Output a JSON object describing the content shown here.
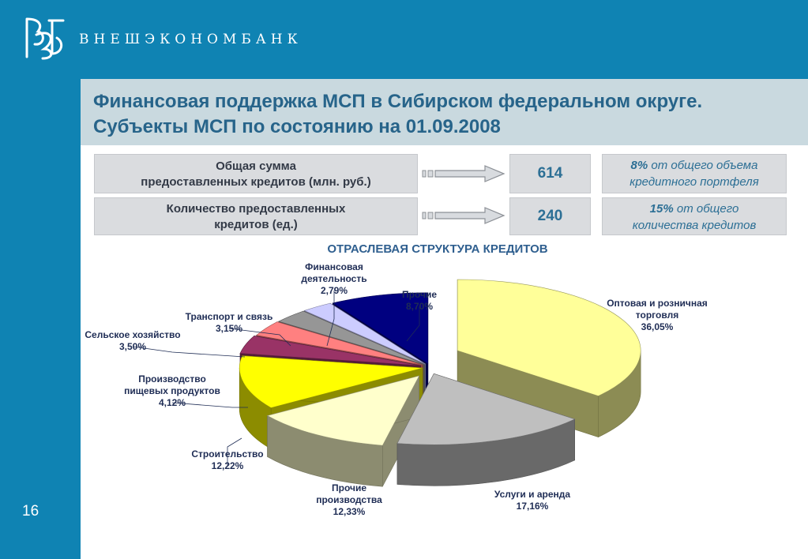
{
  "header": {
    "brand": "ВНЕШЭКОНОМБАНК",
    "logo_icon": "veb-monogram-logo",
    "colors": {
      "bar": "#0f83b3",
      "title_band": "#c9d9df",
      "title_text": "#27648a"
    }
  },
  "title": {
    "line1": "Финансовая поддержка МСП в Сибирском федеральном округе.",
    "line2": "Субъекты МСП по состоянию на 01.09.2008"
  },
  "stats": [
    {
      "label": [
        "Общая сумма",
        "предоставленных кредитов (млн. руб.)"
      ],
      "value": "614",
      "pct_bold": "8%",
      "pct_rest": " от общего объема",
      "pct_line2": "кредитного портфеля"
    },
    {
      "label": [
        "Количество предоставленных",
        "кредитов (ед.)"
      ],
      "value": "240",
      "pct_bold": "15%",
      "pct_rest": " от общего",
      "pct_line2": "количества кредитов"
    }
  ],
  "chart_title": "ОТРАСЛЕВАЯ СТРУКТУРА КРЕДИТОВ",
  "page_number": "16",
  "chart_data": {
    "type": "pie",
    "title": "ОТРАСЛЕВАЯ СТРУКТУРА КРЕДИТОВ",
    "legend": "none",
    "slices": [
      {
        "name": "Оптовая и розничная торговля",
        "lines": [
          "Оптовая и розничная",
          "торговля",
          "36,05%"
        ],
        "value": 36.05,
        "color": "#ffff99"
      },
      {
        "name": "Услуги и аренда",
        "lines": [
          "Услуги и аренда",
          "17,16%"
        ],
        "value": 17.16,
        "color": "#bfbfbf"
      },
      {
        "name": "Прочие производства",
        "lines": [
          "Прочие",
          "производства",
          "12,33%"
        ],
        "value": 12.33,
        "color": "#ffffcc"
      },
      {
        "name": "Строительство",
        "lines": [
          "Строительство",
          "12,22%"
        ],
        "value": 12.22,
        "color": "#ffff00"
      },
      {
        "name": "Производство пищевых продуктов",
        "lines": [
          "Производство",
          "пищевых продуктов",
          "4,12%"
        ],
        "value": 4.12,
        "color": "#993366"
      },
      {
        "name": "Сельское хозяйство",
        "lines": [
          "Сельское хозяйство",
          "3,50%"
        ],
        "value": 3.5,
        "color": "#ff8080"
      },
      {
        "name": "Транспорт и связь",
        "lines": [
          "Транспорт и связь",
          "3,15%"
        ],
        "value": 3.15,
        "color": "#969696"
      },
      {
        "name": "Финансовая деятельность",
        "lines": [
          "Финансовая",
          "деятельность",
          "2,79%"
        ],
        "value": 2.79,
        "color": "#ccccff"
      },
      {
        "name": "Прочие",
        "lines": [
          "Прочие",
          "8,70%"
        ],
        "value": 8.7,
        "color": "#000080"
      }
    ]
  }
}
